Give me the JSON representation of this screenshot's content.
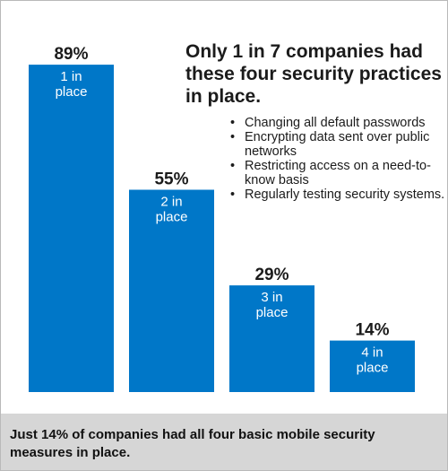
{
  "headline": "Only 1 in 7 companies had these four security practices in place.",
  "practices": [
    "Changing all default passwords",
    "Encrypting data sent over public networks",
    "Restricting access on a need-to-know basis",
    "Regularly testing security systems."
  ],
  "caption": "Just 14% of companies had all four basic mobile security measures in place.",
  "colors": {
    "bar": "#0077c8",
    "value_label": "#1b1b1b",
    "inner_label": "#ffffff",
    "caption_bg": "#d6d6d6"
  },
  "chart_data": {
    "type": "bar",
    "categories": [
      "1 in place",
      "2 in place",
      "3 in place",
      "4 in place"
    ],
    "category_lines": [
      [
        "1 in",
        "place"
      ],
      [
        "2 in",
        "place"
      ],
      [
        "3 in",
        "place"
      ],
      [
        "4 in",
        "place"
      ]
    ],
    "values": [
      89,
      55,
      29,
      14
    ],
    "value_labels": [
      "89%",
      "55%",
      "29%",
      "14%"
    ],
    "unit": "%",
    "ylim": [
      0,
      100
    ],
    "grid": false,
    "legend": "none",
    "title": "",
    "xlabel": "",
    "ylabel": ""
  }
}
